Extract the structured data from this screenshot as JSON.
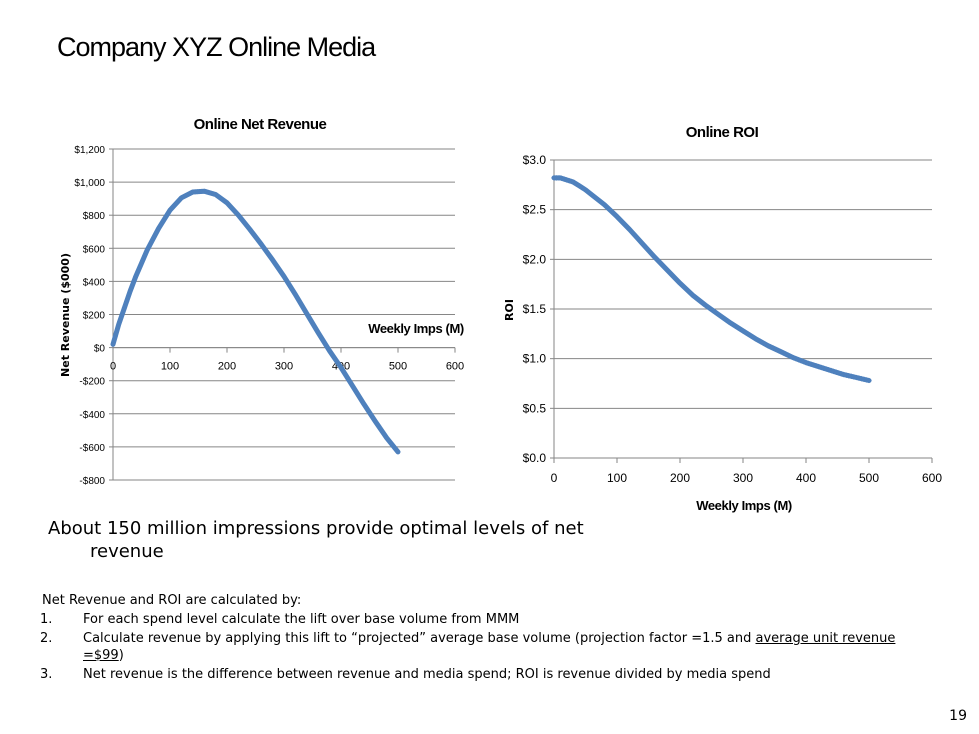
{
  "slide": {
    "title": "Company XYZ Online Media",
    "headline_line1": "About 150 million impressions provide optimal levels of net",
    "headline_line2": "revenue",
    "notes_intro": "Net Revenue and ROI are calculated by:",
    "notes": [
      {
        "num": "1.",
        "text": "For each spend level calculate the lift over base volume from MMM"
      },
      {
        "num": "2.",
        "text_a": "Calculate revenue by applying this lift to “projected” average base volume (projection factor =1.5 and ",
        "underlined": "average unit revenue =$99",
        "text_b": ")"
      },
      {
        "num": "3.",
        "text": "Net revenue is the difference between revenue and media spend; ROI is revenue divided by media spend"
      }
    ],
    "page_number": "19"
  },
  "colors": {
    "series": "#4f81bd",
    "grid": "#868686",
    "axis": "#868686"
  },
  "chart_data": [
    {
      "type": "line",
      "title": "Online Net Revenue",
      "xlabel": "Weekly Imps (M)",
      "ylabel": "Net Revenue ($000)",
      "xlim": [
        0,
        600
      ],
      "ylim": [
        -800,
        1200
      ],
      "x_ticks": [
        0,
        100,
        200,
        300,
        400,
        500,
        600
      ],
      "x_tick_labels": [
        "0",
        "100",
        "200",
        "300",
        "400",
        "500",
        "600"
      ],
      "y_ticks": [
        1200,
        1000,
        800,
        600,
        400,
        200,
        0,
        -200,
        -400,
        -600,
        -800
      ],
      "y_tick_labels": [
        "$1,200",
        "$1,000",
        "$800",
        "$600",
        "$400",
        "$200",
        "$0",
        "-$200",
        "-$400",
        "-$600",
        "-$800"
      ],
      "grid": true,
      "series": [
        {
          "x": [
            0,
            10,
            20,
            30,
            40,
            50,
            60,
            80,
            100,
            120,
            140,
            160,
            180,
            200,
            220,
            240,
            260,
            280,
            300,
            320,
            340,
            360,
            380,
            400,
            420,
            440,
            460,
            480,
            500
          ],
          "y": [
            20,
            140,
            240,
            340,
            430,
            510,
            590,
            720,
            830,
            905,
            940,
            945,
            925,
            875,
            800,
            715,
            625,
            530,
            430,
            320,
            205,
            90,
            -20,
            -120,
            -230,
            -340,
            -445,
            -545,
            -630
          ]
        }
      ]
    },
    {
      "type": "line",
      "title": "Online ROI",
      "xlabel": "Weekly Imps (M)",
      "ylabel": "ROI",
      "xlim": [
        0,
        600
      ],
      "ylim": [
        0,
        3
      ],
      "x_ticks": [
        0,
        100,
        200,
        300,
        400,
        500,
        600
      ],
      "x_tick_labels": [
        "0",
        "100",
        "200",
        "300",
        "400",
        "500",
        "600"
      ],
      "y_ticks": [
        3,
        2.5,
        2,
        1.5,
        1,
        0.5,
        0
      ],
      "y_tick_labels": [
        "$3.0",
        "$2.5",
        "$2.0",
        "$1.5",
        "$1.0",
        "$0.5",
        "$0.0"
      ],
      "grid": true,
      "series": [
        {
          "x": [
            0,
            10,
            20,
            30,
            40,
            50,
            60,
            80,
            100,
            120,
            140,
            160,
            180,
            200,
            220,
            240,
            260,
            280,
            300,
            320,
            340,
            360,
            380,
            400,
            420,
            440,
            460,
            480,
            500
          ],
          "y": [
            2.82,
            2.82,
            2.8,
            2.78,
            2.74,
            2.7,
            2.65,
            2.55,
            2.43,
            2.3,
            2.16,
            2.02,
            1.89,
            1.76,
            1.64,
            1.54,
            1.45,
            1.36,
            1.28,
            1.2,
            1.13,
            1.07,
            1.01,
            0.96,
            0.92,
            0.88,
            0.84,
            0.81,
            0.78
          ]
        }
      ]
    }
  ]
}
